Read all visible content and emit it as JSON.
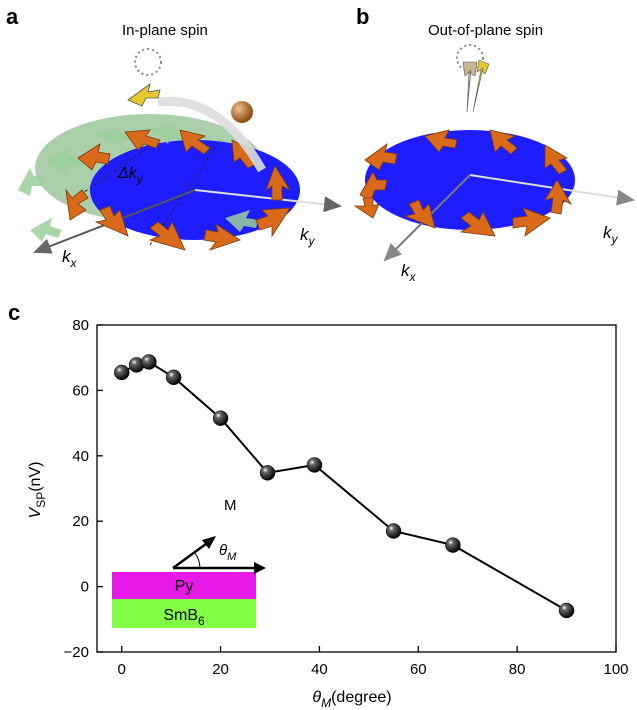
{
  "panels": {
    "a": {
      "letter": "a",
      "title": "In-plane spin",
      "kx": "k",
      "kx_sub": "x",
      "ky": "k",
      "ky_sub": "y",
      "dky": "Δk",
      "dky_sub": "y"
    },
    "b": {
      "letter": "b",
      "title": "Out-of-plane spin",
      "kx": "k",
      "kx_sub": "x",
      "ky": "k",
      "ky_sub": "y"
    },
    "c": {
      "letter": "c"
    }
  },
  "inset": {
    "m_label": "M",
    "theta_label": "θ",
    "theta_sub": "M",
    "py_label": "Py",
    "smb_label": "SmB",
    "smb_sub": "6",
    "py_color": "#e619e6",
    "smb_color": "#80ff44"
  },
  "colors": {
    "fermi_disc": "#1d1dff",
    "spin_arrow": "#d96a1a",
    "shifted_disc": "#8fbf8f"
  },
  "chart_data": {
    "type": "line",
    "marker": "sphere",
    "x": [
      0,
      3,
      5.5,
      10.5,
      20,
      29.5,
      39,
      55,
      67,
      90
    ],
    "y": [
      65.5,
      67.8,
      68.7,
      64,
      51.5,
      34.8,
      37.2,
      17,
      12.7,
      -7.3
    ],
    "xlabel": "θ",
    "xlabel_sub": "M",
    "xlabel_unit": "(degree)",
    "ylabel": "V",
    "ylabel_sub": "SP",
    "ylabel_unit": "(nV)",
    "xlim": [
      -5,
      100
    ],
    "ylim": [
      -20,
      80
    ],
    "xticks": [
      0,
      20,
      40,
      60,
      80,
      100
    ],
    "yticks": [
      -20,
      0,
      20,
      40,
      60,
      80
    ],
    "grid": false
  }
}
